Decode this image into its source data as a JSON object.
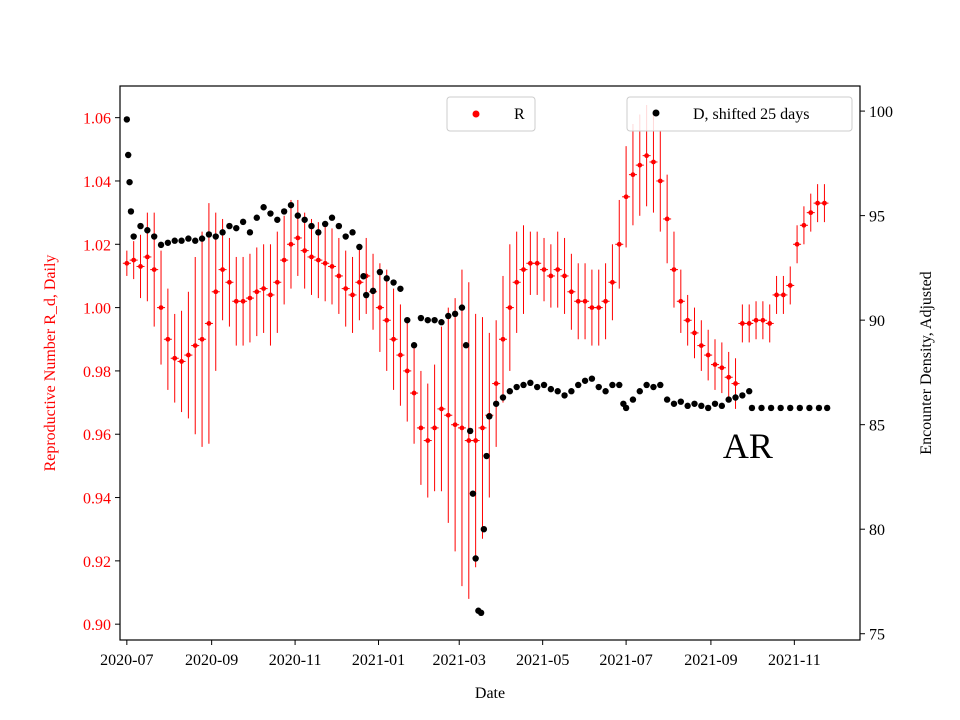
{
  "chart_data": {
    "type": "scatter",
    "title": "",
    "xlabel": "Date",
    "ylabel_left": "Reproductive Number R_d, Daily",
    "ylabel_right": "Encounter Density, Adjusted",
    "x_range": [
      "2020-06-26",
      "2021-12-19"
    ],
    "ylim_left": [
      0.895,
      1.07
    ],
    "ylim_right": [
      74.7,
      101.2
    ],
    "x_ticks": [
      "2020-07",
      "2020-09",
      "2020-11",
      "2021-01",
      "2021-03",
      "2021-05",
      "2021-07",
      "2021-09",
      "2021-11"
    ],
    "x_tick_dates": [
      "2020-07-01",
      "2020-09-01",
      "2020-11-01",
      "2021-01-01",
      "2021-03-01",
      "2021-05-01",
      "2021-07-01",
      "2021-09-01",
      "2021-11-01"
    ],
    "y_ticks_left": [
      0.9,
      0.92,
      0.94,
      0.96,
      0.98,
      1.0,
      1.02,
      1.04,
      1.06
    ],
    "y_tick_labels_left": [
      "0.90",
      "0.92",
      "0.94",
      "0.96",
      "0.98",
      "1.00",
      "1.02",
      "1.04",
      "1.06"
    ],
    "y_ticks_right": [
      75,
      80,
      85,
      90,
      95,
      100
    ],
    "annotation": "AR",
    "annotation_date": "2021-09-28",
    "annotation_value_right": 83.4,
    "legend_left": {
      "label": "R",
      "placement": "top-center"
    },
    "legend_right": {
      "label": "D, shifted 25 days",
      "placement": "top-right"
    },
    "colors": {
      "r_series": "#ff0000",
      "d_series": "#000000",
      "left_axis": "#ff0000",
      "right_axis": "#000000"
    },
    "grid": false,
    "series": [
      {
        "name": "R",
        "axis": "left",
        "style": "markers-with-errorbars",
        "points": [
          [
            "2020-07-01",
            1.014,
            0.004
          ],
          [
            "2020-07-06",
            1.015,
            0.006
          ],
          [
            "2020-07-11",
            1.013,
            0.01
          ],
          [
            "2020-07-16",
            1.016,
            0.014
          ],
          [
            "2020-07-21",
            1.012,
            0.018
          ],
          [
            "2020-07-26",
            1.0,
            0.018
          ],
          [
            "2020-07-31",
            0.99,
            0.016
          ],
          [
            "2020-08-05",
            0.984,
            0.014
          ],
          [
            "2020-08-10",
            0.983,
            0.016
          ],
          [
            "2020-08-15",
            0.985,
            0.02
          ],
          [
            "2020-08-20",
            0.988,
            0.028
          ],
          [
            "2020-08-25",
            0.99,
            0.034
          ],
          [
            "2020-08-30",
            0.995,
            0.038
          ],
          [
            "2020-09-04",
            1.005,
            0.025
          ],
          [
            "2020-09-09",
            1.012,
            0.016
          ],
          [
            "2020-09-14",
            1.008,
            0.014
          ],
          [
            "2020-09-19",
            1.002,
            0.014
          ],
          [
            "2020-09-24",
            1.002,
            0.014
          ],
          [
            "2020-09-29",
            1.003,
            0.014
          ],
          [
            "2020-10-04",
            1.005,
            0.014
          ],
          [
            "2020-10-09",
            1.006,
            0.014
          ],
          [
            "2020-10-14",
            1.004,
            0.016
          ],
          [
            "2020-10-19",
            1.008,
            0.016
          ],
          [
            "2020-10-24",
            1.015,
            0.014
          ],
          [
            "2020-10-29",
            1.02,
            0.014
          ],
          [
            "2020-11-03",
            1.022,
            0.012
          ],
          [
            "2020-11-08",
            1.018,
            0.012
          ],
          [
            "2020-11-13",
            1.016,
            0.012
          ],
          [
            "2020-11-18",
            1.015,
            0.012
          ],
          [
            "2020-11-23",
            1.014,
            0.012
          ],
          [
            "2020-11-28",
            1.013,
            0.012
          ],
          [
            "2020-12-03",
            1.01,
            0.012
          ],
          [
            "2020-12-08",
            1.006,
            0.012
          ],
          [
            "2020-12-13",
            1.004,
            0.012
          ],
          [
            "2020-12-18",
            1.008,
            0.012
          ],
          [
            "2020-12-23",
            1.01,
            0.012
          ],
          [
            "2020-12-28",
            1.005,
            0.012
          ],
          [
            "2021-01-02",
            1.0,
            0.014
          ],
          [
            "2021-01-07",
            0.996,
            0.016
          ],
          [
            "2021-01-12",
            0.99,
            0.016
          ],
          [
            "2021-01-17",
            0.985,
            0.016
          ],
          [
            "2021-01-22",
            0.98,
            0.016
          ],
          [
            "2021-01-27",
            0.973,
            0.016
          ],
          [
            "2021-02-01",
            0.962,
            0.018
          ],
          [
            "2021-02-06",
            0.958,
            0.018
          ],
          [
            "2021-02-11",
            0.962,
            0.02
          ],
          [
            "2021-02-16",
            0.968,
            0.026
          ],
          [
            "2021-02-21",
            0.966,
            0.034
          ],
          [
            "2021-02-26",
            0.963,
            0.04
          ],
          [
            "2021-03-03",
            0.962,
            0.05
          ],
          [
            "2021-03-08",
            0.958,
            0.05
          ],
          [
            "2021-03-13",
            0.958,
            0.04
          ],
          [
            "2021-03-18",
            0.962,
            0.035
          ],
          [
            "2021-03-23",
            0.966,
            0.026
          ],
          [
            "2021-03-28",
            0.976,
            0.02
          ],
          [
            "2021-04-02",
            0.99,
            0.02
          ],
          [
            "2021-04-07",
            1.0,
            0.02
          ],
          [
            "2021-04-12",
            1.008,
            0.016
          ],
          [
            "2021-04-17",
            1.012,
            0.014
          ],
          [
            "2021-04-22",
            1.014,
            0.01
          ],
          [
            "2021-04-27",
            1.014,
            0.01
          ],
          [
            "2021-05-02",
            1.012,
            0.01
          ],
          [
            "2021-05-07",
            1.01,
            0.01
          ],
          [
            "2021-05-12",
            1.012,
            0.012
          ],
          [
            "2021-05-17",
            1.01,
            0.012
          ],
          [
            "2021-05-22",
            1.005,
            0.012
          ],
          [
            "2021-05-27",
            1.002,
            0.012
          ],
          [
            "2021-06-01",
            1.002,
            0.012
          ],
          [
            "2021-06-06",
            1.0,
            0.012
          ],
          [
            "2021-06-11",
            1.0,
            0.012
          ],
          [
            "2021-06-16",
            1.002,
            0.012
          ],
          [
            "2021-06-21",
            1.008,
            0.012
          ],
          [
            "2021-06-26",
            1.02,
            0.014
          ],
          [
            "2021-07-01",
            1.035,
            0.016
          ],
          [
            "2021-07-06",
            1.042,
            0.016
          ],
          [
            "2021-07-11",
            1.045,
            0.016
          ],
          [
            "2021-07-16",
            1.048,
            0.016
          ],
          [
            "2021-07-21",
            1.046,
            0.016
          ],
          [
            "2021-07-26",
            1.04,
            0.016
          ],
          [
            "2021-07-31",
            1.028,
            0.014
          ],
          [
            "2021-08-05",
            1.012,
            0.012
          ],
          [
            "2021-08-10",
            1.002,
            0.01
          ],
          [
            "2021-08-15",
            0.996,
            0.008
          ],
          [
            "2021-08-20",
            0.992,
            0.008
          ],
          [
            "2021-08-25",
            0.988,
            0.008
          ],
          [
            "2021-08-30",
            0.985,
            0.008
          ],
          [
            "2021-09-04",
            0.982,
            0.008
          ],
          [
            "2021-09-09",
            0.981,
            0.008
          ],
          [
            "2021-09-14",
            0.978,
            0.008
          ],
          [
            "2021-09-19",
            0.976,
            0.008
          ],
          [
            "2021-09-24",
            0.995,
            0.006
          ],
          [
            "2021-09-29",
            0.995,
            0.006
          ],
          [
            "2021-10-04",
            0.996,
            0.006
          ],
          [
            "2021-10-09",
            0.996,
            0.006
          ],
          [
            "2021-10-14",
            0.995,
            0.006
          ],
          [
            "2021-10-19",
            1.004,
            0.006
          ],
          [
            "2021-10-24",
            1.004,
            0.006
          ],
          [
            "2021-10-29",
            1.007,
            0.006
          ],
          [
            "2021-11-03",
            1.02,
            0.006
          ],
          [
            "2021-11-08",
            1.026,
            0.006
          ],
          [
            "2021-11-13",
            1.03,
            0.006
          ],
          [
            "2021-11-18",
            1.033,
            0.006
          ],
          [
            "2021-11-23",
            1.033,
            0.006
          ]
        ]
      },
      {
        "name": "D, shifted 25 days",
        "axis": "right",
        "style": "markers",
        "points": [
          [
            "2020-07-01",
            99.6
          ],
          [
            "2020-07-02",
            97.9
          ],
          [
            "2020-07-03",
            96.6
          ],
          [
            "2020-07-04",
            95.2
          ],
          [
            "2020-07-06",
            94.0
          ],
          [
            "2020-07-11",
            94.5
          ],
          [
            "2020-07-16",
            94.3
          ],
          [
            "2020-07-21",
            94.0
          ],
          [
            "2020-07-26",
            93.6
          ],
          [
            "2020-07-31",
            93.7
          ],
          [
            "2020-08-05",
            93.8
          ],
          [
            "2020-08-10",
            93.8
          ],
          [
            "2020-08-15",
            93.9
          ],
          [
            "2020-08-20",
            93.8
          ],
          [
            "2020-08-25",
            93.9
          ],
          [
            "2020-08-30",
            94.1
          ],
          [
            "2020-09-04",
            94.0
          ],
          [
            "2020-09-09",
            94.2
          ],
          [
            "2020-09-14",
            94.5
          ],
          [
            "2020-09-19",
            94.4
          ],
          [
            "2020-09-24",
            94.7
          ],
          [
            "2020-09-29",
            94.2
          ],
          [
            "2020-10-04",
            94.9
          ],
          [
            "2020-10-09",
            95.4
          ],
          [
            "2020-10-14",
            95.1
          ],
          [
            "2020-10-19",
            94.8
          ],
          [
            "2020-10-24",
            95.2
          ],
          [
            "2020-10-29",
            95.5
          ],
          [
            "2020-11-03",
            95.0
          ],
          [
            "2020-11-08",
            94.8
          ],
          [
            "2020-11-13",
            94.5
          ],
          [
            "2020-11-18",
            94.2
          ],
          [
            "2020-11-23",
            94.6
          ],
          [
            "2020-11-28",
            94.9
          ],
          [
            "2020-12-03",
            94.5
          ],
          [
            "2020-12-08",
            94.0
          ],
          [
            "2020-12-13",
            94.2
          ],
          [
            "2020-12-18",
            93.5
          ],
          [
            "2020-12-21",
            92.1
          ],
          [
            "2020-12-23",
            91.2
          ],
          [
            "2020-12-28",
            91.4
          ],
          [
            "2021-01-02",
            92.3
          ],
          [
            "2021-01-07",
            92.0
          ],
          [
            "2021-01-12",
            91.8
          ],
          [
            "2021-01-17",
            91.5
          ],
          [
            "2021-01-22",
            90.0
          ],
          [
            "2021-01-27",
            88.8
          ],
          [
            "2021-02-01",
            90.1
          ],
          [
            "2021-02-06",
            90.0
          ],
          [
            "2021-02-11",
            90.0
          ],
          [
            "2021-02-16",
            89.9
          ],
          [
            "2021-02-21",
            90.2
          ],
          [
            "2021-02-26",
            90.3
          ],
          [
            "2021-03-03",
            90.6
          ],
          [
            "2021-03-06",
            88.8
          ],
          [
            "2021-03-09",
            84.7
          ],
          [
            "2021-03-11",
            81.7
          ],
          [
            "2021-03-13",
            78.6
          ],
          [
            "2021-03-15",
            76.1
          ],
          [
            "2021-03-17",
            76.0
          ],
          [
            "2021-03-19",
            80.0
          ],
          [
            "2021-03-21",
            83.5
          ],
          [
            "2021-03-23",
            85.4
          ],
          [
            "2021-03-28",
            86.0
          ],
          [
            "2021-04-02",
            86.3
          ],
          [
            "2021-04-07",
            86.6
          ],
          [
            "2021-04-12",
            86.8
          ],
          [
            "2021-04-17",
            86.9
          ],
          [
            "2021-04-22",
            87.0
          ],
          [
            "2021-04-27",
            86.8
          ],
          [
            "2021-05-02",
            86.9
          ],
          [
            "2021-05-07",
            86.7
          ],
          [
            "2021-05-12",
            86.6
          ],
          [
            "2021-05-17",
            86.4
          ],
          [
            "2021-05-22",
            86.6
          ],
          [
            "2021-05-27",
            86.9
          ],
          [
            "2021-06-01",
            87.1
          ],
          [
            "2021-06-06",
            87.2
          ],
          [
            "2021-06-11",
            86.8
          ],
          [
            "2021-06-16",
            86.6
          ],
          [
            "2021-06-21",
            86.9
          ],
          [
            "2021-06-26",
            86.9
          ],
          [
            "2021-06-29",
            86.0
          ],
          [
            "2021-07-01",
            85.8
          ],
          [
            "2021-07-06",
            86.2
          ],
          [
            "2021-07-11",
            86.6
          ],
          [
            "2021-07-16",
            86.9
          ],
          [
            "2021-07-21",
            86.8
          ],
          [
            "2021-07-26",
            86.9
          ],
          [
            "2021-07-31",
            86.2
          ],
          [
            "2021-08-05",
            86.0
          ],
          [
            "2021-08-10",
            86.1
          ],
          [
            "2021-08-15",
            85.9
          ],
          [
            "2021-08-20",
            86.0
          ],
          [
            "2021-08-25",
            85.9
          ],
          [
            "2021-08-30",
            85.8
          ],
          [
            "2021-09-04",
            86.0
          ],
          [
            "2021-09-09",
            85.9
          ],
          [
            "2021-09-14",
            86.2
          ],
          [
            "2021-09-19",
            86.3
          ],
          [
            "2021-09-24",
            86.4
          ],
          [
            "2021-09-29",
            86.6
          ],
          [
            "2021-10-01",
            85.8
          ],
          [
            "2021-10-08",
            85.8
          ],
          [
            "2021-10-15",
            85.8
          ],
          [
            "2021-10-22",
            85.8
          ],
          [
            "2021-10-29",
            85.8
          ],
          [
            "2021-11-05",
            85.8
          ],
          [
            "2021-11-12",
            85.8
          ],
          [
            "2021-11-19",
            85.8
          ],
          [
            "2021-11-25",
            85.8
          ]
        ]
      }
    ]
  }
}
